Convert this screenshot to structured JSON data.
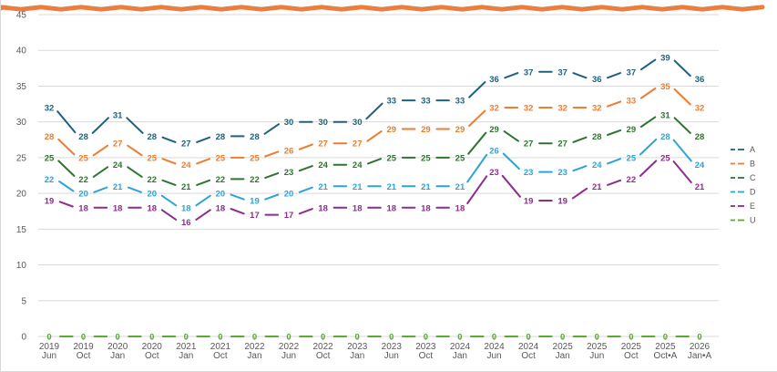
{
  "chart_data": {
    "type": "line",
    "title": "",
    "xlabel": "",
    "ylabel": "",
    "ylim": [
      0,
      45
    ],
    "yticks": [
      0,
      5,
      10,
      15,
      20,
      25,
      30,
      35,
      40,
      45
    ],
    "grid": "horizontal",
    "legend_position": "right",
    "categories": [
      [
        "2019",
        "Jun"
      ],
      [
        "2019",
        "Oct"
      ],
      [
        "2020",
        "Jan"
      ],
      [
        "2020",
        "Oct"
      ],
      [
        "2021",
        "Jan"
      ],
      [
        "2021",
        "Oct"
      ],
      [
        "2022",
        "Jan"
      ],
      [
        "2022",
        "Jun"
      ],
      [
        "2022",
        "Oct"
      ],
      [
        "2023",
        "Jan"
      ],
      [
        "2023",
        "Jun"
      ],
      [
        "2023",
        "Oct"
      ],
      [
        "2024",
        "Jan"
      ],
      [
        "2024",
        "Jun"
      ],
      [
        "2024",
        "Oct"
      ],
      [
        "2025",
        "Jan"
      ],
      [
        "2025",
        "Jun"
      ],
      [
        "2025",
        "Oct"
      ],
      [
        "2025",
        "Oct•A"
      ],
      [
        "2026",
        "Jan•A"
      ]
    ],
    "series": [
      {
        "name": "A",
        "color": "#1f6180",
        "values": [
          32,
          28,
          31,
          28,
          27,
          28,
          28,
          30,
          30,
          30,
          33,
          33,
          33,
          36,
          37,
          37,
          36,
          37,
          39,
          36
        ]
      },
      {
        "name": "B",
        "color": "#ed7d31",
        "values": [
          28,
          25,
          27,
          25,
          24,
          25,
          25,
          26,
          27,
          27,
          29,
          29,
          29,
          32,
          32,
          32,
          32,
          33,
          35,
          32
        ]
      },
      {
        "name": "C",
        "color": "#2e7531",
        "values": [
          25,
          22,
          24,
          22,
          21,
          22,
          22,
          23,
          24,
          24,
          25,
          25,
          25,
          29,
          27,
          27,
          28,
          29,
          31,
          28
        ]
      },
      {
        "name": "D",
        "color": "#2ea4d6",
        "values": [
          22,
          20,
          21,
          20,
          18,
          20,
          19,
          20,
          21,
          21,
          21,
          21,
          21,
          26,
          23,
          23,
          24,
          25,
          28,
          24
        ]
      },
      {
        "name": "E",
        "color": "#8e2d8e",
        "values": [
          19,
          18,
          18,
          18,
          16,
          18,
          17,
          17,
          18,
          18,
          18,
          18,
          18,
          23,
          19,
          19,
          21,
          22,
          25,
          21
        ]
      },
      {
        "name": "U",
        "color": "#5aab2e",
        "values": [
          0,
          0,
          0,
          0,
          0,
          0,
          0,
          0,
          0,
          0,
          0,
          0,
          0,
          0,
          0,
          0,
          0,
          0,
          0,
          0
        ]
      }
    ],
    "decor_stroke_color": "#e8702a"
  }
}
